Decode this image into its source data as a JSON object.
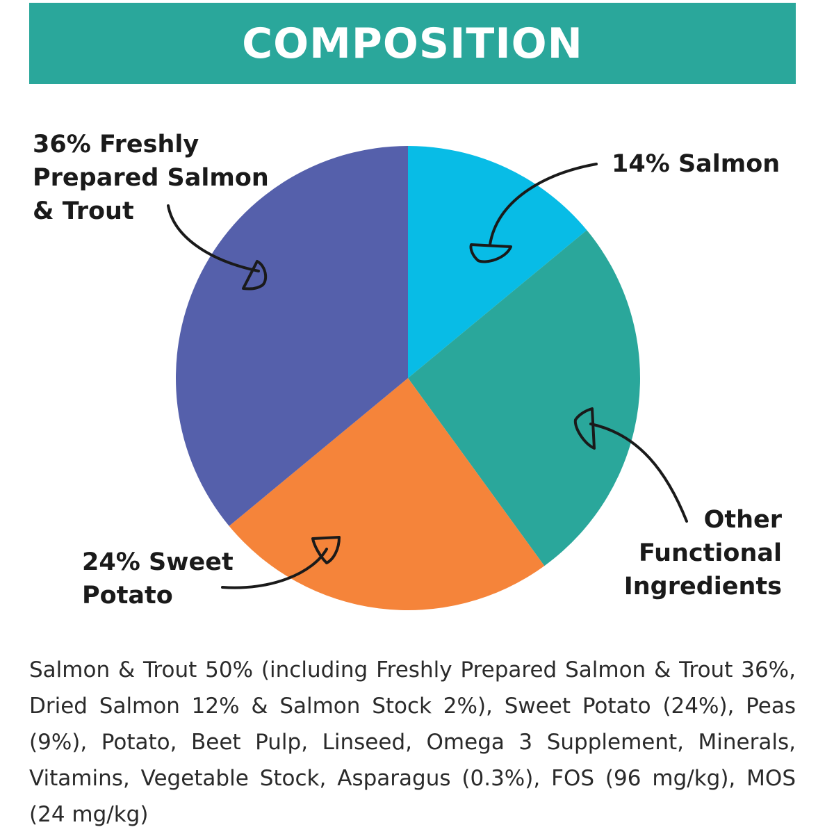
{
  "header": {
    "title": "COMPOSITION"
  },
  "chart_data": {
    "type": "pie",
    "title": "",
    "start_angle_deg": 0,
    "direction": "clockwise",
    "slices": [
      {
        "label_lines": [
          "14% Salmon"
        ],
        "value": 14,
        "color": "#08bce6"
      },
      {
        "label_lines": [
          "Other",
          "Functional",
          "Ingredients"
        ],
        "value": 26,
        "color": "#2aa79b"
      },
      {
        "label_lines": [
          "24% Sweet",
          "Potato"
        ],
        "value": 24,
        "color": "#f5843a"
      },
      {
        "label_lines": [
          "36% Freshly",
          "Prepared Salmon",
          "& Trout"
        ],
        "value": 36,
        "color": "#5560ab"
      }
    ]
  },
  "ingredients_text": "Salmon & Trout 50% (including Freshly Prepared Salmon & Trout 36%, Dried Salmon 12% & Salmon Stock 2%), Sweet Potato (24%), Peas (9%), Potato, Beet Pulp, Linseed, Omega 3 Supplement, Minerals, Vitamins, Vegetable Stock, Asparagus (0.3%), FOS (96 mg/kg), MOS (24 mg/kg)"
}
